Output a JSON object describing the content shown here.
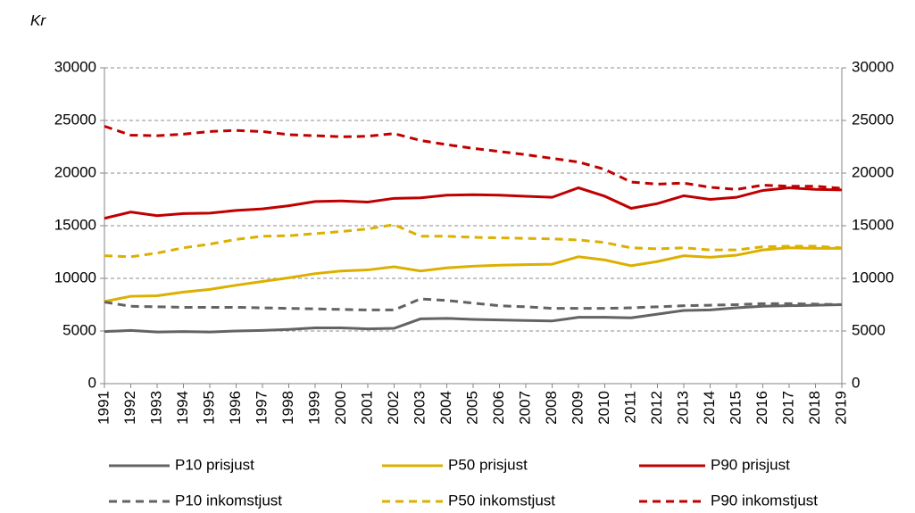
{
  "chart_data": {
    "type": "line",
    "y_label": "Kr",
    "categories": [
      "1991",
      "1992",
      "1993",
      "1994",
      "1995",
      "1996",
      "1997",
      "1998",
      "1999",
      "2000",
      "2001",
      "2002",
      "2003",
      "2004",
      "2005",
      "2006",
      "2007",
      "2008",
      "2009",
      "2010",
      "2011",
      "2012",
      "2013",
      "2014",
      "2015",
      "2016",
      "2017",
      "2018",
      "2019"
    ],
    "ylim": [
      0,
      30000
    ],
    "yticks": [
      0,
      5000,
      10000,
      15000,
      20000,
      25000,
      30000
    ],
    "y2lim": [
      0,
      30000
    ],
    "y2ticks": [
      0,
      5000,
      10000,
      15000,
      20000,
      25000,
      30000
    ],
    "grid": true,
    "series": [
      {
        "name": "P10 prisjust",
        "color": "#636363",
        "line_style": "solid",
        "values": [
          4950,
          5050,
          4900,
          4950,
          4900,
          5000,
          5050,
          5150,
          5300,
          5300,
          5200,
          5250,
          6150,
          6200,
          6100,
          6050,
          6000,
          5950,
          6300,
          6300,
          6250,
          6600,
          6950,
          7000,
          7200,
          7350,
          7400,
          7450,
          7500
        ]
      },
      {
        "name": "P50 prisjust",
        "color": "#dcb000",
        "line_style": "solid",
        "values": [
          7800,
          8300,
          8350,
          8700,
          8950,
          9350,
          9700,
          10050,
          10450,
          10700,
          10800,
          11100,
          10700,
          11000,
          11150,
          11250,
          11300,
          11350,
          12050,
          11750,
          11200,
          11600,
          12150,
          12000,
          12200,
          12700,
          12900,
          12850,
          12850
        ]
      },
      {
        "name": "P90 prisjust",
        "color": "#c00000",
        "line_style": "solid",
        "values": [
          15700,
          16300,
          15950,
          16150,
          16200,
          16450,
          16600,
          16900,
          17300,
          17350,
          17250,
          17600,
          17650,
          17900,
          17950,
          17900,
          17800,
          17700,
          18600,
          17800,
          16650,
          17100,
          17850,
          17500,
          17700,
          18350,
          18600,
          18450,
          18400
        ]
      },
      {
        "name": "P10 inkomstjust",
        "color": "#636363",
        "line_style": "dashed",
        "values": [
          7750,
          7350,
          7300,
          7250,
          7250,
          7250,
          7200,
          7150,
          7100,
          7050,
          7000,
          7000,
          8050,
          7900,
          7650,
          7400,
          7300,
          7150,
          7150,
          7150,
          7200,
          7300,
          7400,
          7450,
          7500,
          7600,
          7600,
          7550,
          7500
        ]
      },
      {
        "name": "P50 inkomstjust",
        "color": "#dcb000",
        "line_style": "dashed",
        "values": [
          12150,
          12050,
          12400,
          12900,
          13250,
          13700,
          14000,
          14050,
          14250,
          14450,
          14700,
          15100,
          14000,
          14000,
          13900,
          13850,
          13800,
          13750,
          13650,
          13400,
          12900,
          12800,
          12900,
          12700,
          12700,
          13000,
          13050,
          13050,
          12900
        ]
      },
      {
        "name": "P90 inkomstjust",
        "color": "#c00000",
        "line_style": "dashed",
        "values": [
          24450,
          23600,
          23550,
          23700,
          23950,
          24050,
          23950,
          23650,
          23550,
          23450,
          23500,
          23750,
          23100,
          22700,
          22350,
          22050,
          21750,
          21400,
          21050,
          20350,
          19150,
          18950,
          19050,
          18650,
          18450,
          18850,
          18750,
          18750,
          18550
        ]
      }
    ]
  }
}
